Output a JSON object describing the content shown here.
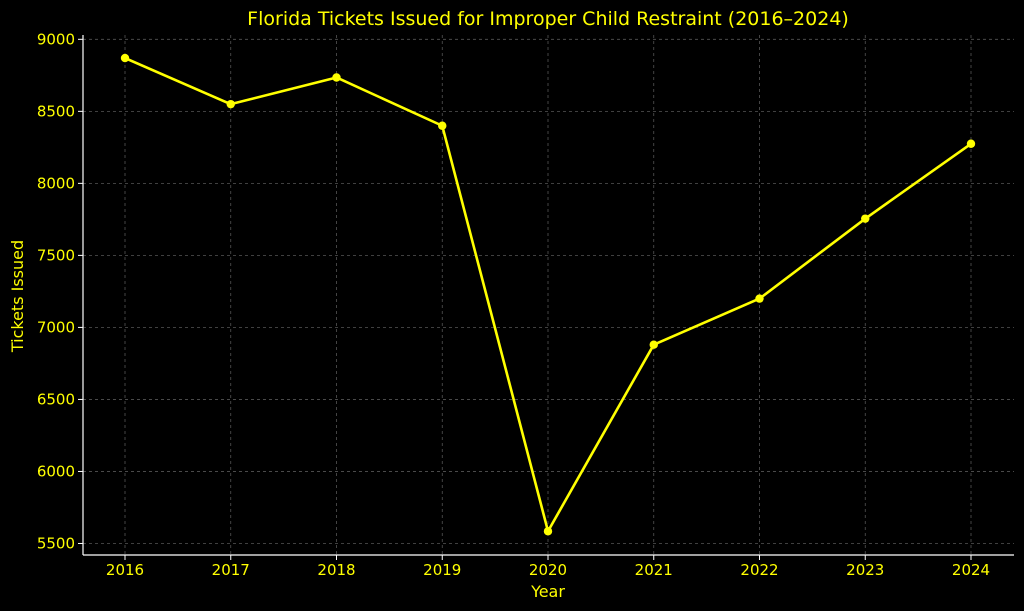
{
  "chart_data": {
    "type": "line",
    "title": "Florida Tickets Issued for Improper Child Restraint (2016–2024)",
    "xlabel": "Year",
    "ylabel": "Tickets Issued",
    "categories": [
      "2016",
      "2017",
      "2018",
      "2019",
      "2020",
      "2021",
      "2022",
      "2023",
      "2024"
    ],
    "series": [
      {
        "values": [
          8870,
          8550,
          8735,
          8400,
          5585,
          6880,
          7200,
          7755,
          8275
        ]
      }
    ],
    "ylim": [
      5420,
      9030
    ],
    "yticks": [
      "5500",
      "6000",
      "6500",
      "7000",
      "7500",
      "8000",
      "8500",
      "9000"
    ],
    "grid": true,
    "colors": {
      "background": "#000000",
      "line": "#ffff00",
      "text": "#ffff00",
      "axis": "#ffffff",
      "grid": "#555555"
    }
  }
}
